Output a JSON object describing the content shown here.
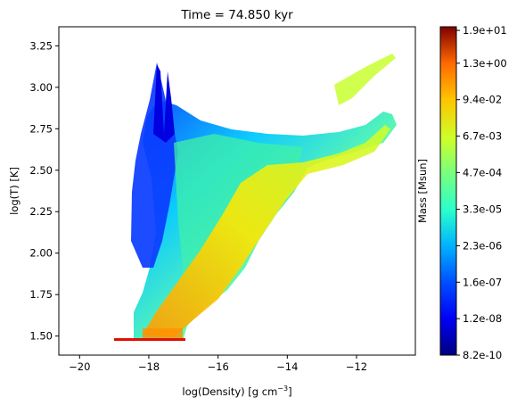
{
  "chart_data": {
    "type": "heatmap",
    "title": "Time = 74.850 kyr",
    "xlabel": "log(Density) [g cm",
    "xlabel_sup": "−3",
    "xlabel_end": "]",
    "ylabel": "log(T) [K]",
    "xlim": [
      -20.6,
      -10.3
    ],
    "ylim": [
      1.385,
      3.365
    ],
    "xticks": [
      -20,
      -18,
      -16,
      -14,
      -12
    ],
    "xtick_labels": [
      "−20",
      "−18",
      "−16",
      "−14",
      "−12"
    ],
    "yticks": [
      1.5,
      1.75,
      2.0,
      2.25,
      2.5,
      2.75,
      3.0,
      3.25
    ],
    "ytick_labels": [
      "1.50",
      "1.75",
      "2.00",
      "2.25",
      "2.50",
      "2.75",
      "3.00",
      "3.25"
    ],
    "colormap": "jet",
    "colorbar": {
      "label": "Mass [Msun]",
      "tick_labels": [
        "8.2e-10",
        "1.2e-08",
        "1.6e-07",
        "2.3e-06",
        "3.3e-05",
        "4.7e-04",
        "6.7e-03",
        "9.4e-02",
        "1.3e+00",
        "1.9e+01"
      ],
      "tick_fractions": [
        0.0,
        0.111,
        0.222,
        0.333,
        0.444,
        0.556,
        0.667,
        0.778,
        0.889,
        0.989
      ]
    },
    "cells": [
      {
        "x": -18.05,
        "y": 1.47,
        "v": 0.95
      },
      {
        "x": -17.6,
        "y": 1.47,
        "v": 0.85
      },
      {
        "x": -17.9,
        "y": 1.55,
        "v": 0.85
      },
      {
        "x": -17.3,
        "y": 1.65,
        "v": 0.75
      },
      {
        "x": -16.7,
        "y": 1.85,
        "v": 0.7
      },
      {
        "x": -16.2,
        "y": 2.05,
        "v": 0.65
      },
      {
        "x": -15.7,
        "y": 2.25,
        "v": 0.65
      },
      {
        "x": -15.2,
        "y": 2.45,
        "v": 0.62
      },
      {
        "x": -14.0,
        "y": 2.5,
        "v": 0.6
      },
      {
        "x": -12.3,
        "y": 2.52,
        "v": 0.58
      },
      {
        "x": -11.2,
        "y": 2.75,
        "v": 0.62
      },
      {
        "x": -17.5,
        "y": 2.65,
        "v": 0.12
      },
      {
        "x": -17.8,
        "y": 2.3,
        "v": 0.22
      },
      {
        "x": -16.2,
        "y": 2.85,
        "v": 0.35
      },
      {
        "x": -17.0,
        "y": 2.2,
        "v": 0.35
      }
    ]
  }
}
